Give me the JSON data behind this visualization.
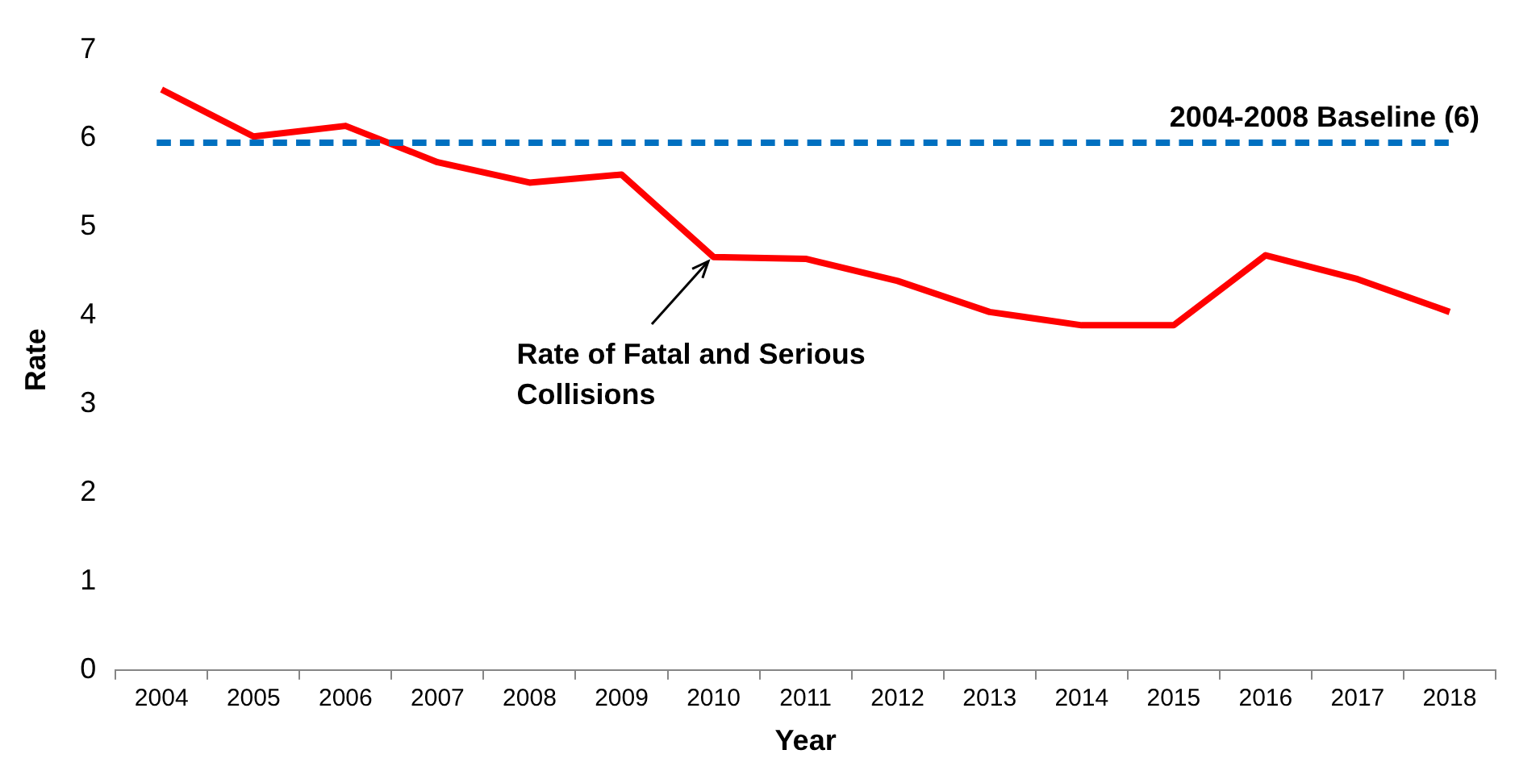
{
  "chart_data": {
    "type": "line",
    "xlabel": "Year",
    "ylabel": "Rate",
    "categories": [
      "2004",
      "2005",
      "2006",
      "2007",
      "2008",
      "2009",
      "2010",
      "2011",
      "2012",
      "2013",
      "2014",
      "2015",
      "2016",
      "2017",
      "2018"
    ],
    "series": [
      {
        "color": "#ff0000",
        "values": [
          6.55,
          6.02,
          6.14,
          5.73,
          5.5,
          5.59,
          4.66,
          4.64,
          4.39,
          4.04,
          3.89,
          3.89,
          4.68,
          4.41,
          4.04
        ]
      }
    ],
    "ylim": [
      0,
      7
    ],
    "yticks": [
      0,
      1,
      2,
      3,
      4,
      5,
      6,
      7
    ],
    "grid": false,
    "legend": false,
    "marker": "none",
    "line_style": "solid",
    "ref_lines": [
      {
        "axis": "y",
        "value": 5.95,
        "label": "2004-2008 Baseline (6)",
        "color": "#0070c0",
        "line_style": "dashed"
      }
    ],
    "annotations": [
      {
        "text": "Rate of Fatal and Serious Collisions",
        "x": "2010",
        "y": 4.66
      }
    ]
  }
}
